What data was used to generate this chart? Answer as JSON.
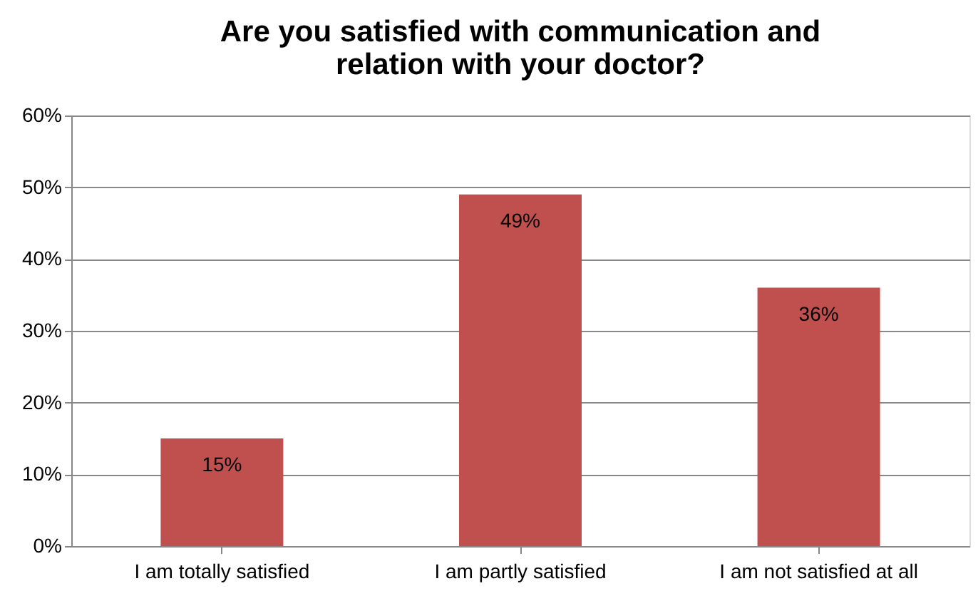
{
  "chart_data": {
    "type": "bar",
    "title": "Are you satisfied with communication and\nrelation with your doctor?",
    "categories": [
      "I am totally satisfied",
      "I am partly satisfied",
      "I am not satisfied at all"
    ],
    "values": [
      15,
      49,
      36
    ],
    "value_labels": [
      "15%",
      "49%",
      "36%"
    ],
    "color": "#c0504d",
    "ylim": [
      0,
      60
    ],
    "yticks": [
      {
        "value": 0,
        "label": "0%"
      },
      {
        "value": 10,
        "label": "10%"
      },
      {
        "value": 20,
        "label": "20%"
      },
      {
        "value": 30,
        "label": "30%"
      },
      {
        "value": 40,
        "label": "40%"
      },
      {
        "value": 50,
        "label": "50%"
      },
      {
        "value": 60,
        "label": "60%"
      }
    ],
    "grid": "y"
  }
}
